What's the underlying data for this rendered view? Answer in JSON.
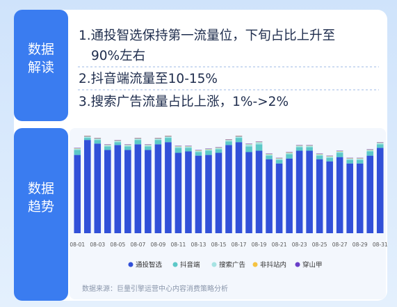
{
  "section_labels": [
    [
      "数据",
      "解读"
    ],
    [
      "数据",
      "趋势"
    ]
  ],
  "text_lines": [
    "1.通投智选保持第一流量位，下旬占比上升至",
    "90%左右",
    "2.抖音端流量至10-15%",
    "3.搜索广告流量占比上涨，1%->2%"
  ],
  "chart_data": {
    "type": "bar",
    "stacked": true,
    "categories": [
      "08-01",
      null,
      "08-03",
      null,
      "08-05",
      null,
      "08-07",
      null,
      "08-09",
      null,
      "08-11",
      null,
      "08-13",
      null,
      "08-15",
      null,
      "08-17",
      null,
      "08-19",
      null,
      "08-21",
      null,
      "08-23",
      null,
      "08-25",
      null,
      "08-27",
      null,
      "08-29",
      null,
      "08-31"
    ],
    "series": [
      {
        "name": "通投智选",
        "color": "#3150d8",
        "values": [
          110,
          131,
          126,
          117,
          124,
          117,
          125,
          117,
          125,
          128,
          113,
          115,
          109,
          110,
          113,
          124,
          128,
          114,
          116,
          104,
          98,
          105,
          116,
          116,
          104,
          101,
          107,
          98,
          98,
          109,
          120
        ]
      },
      {
        "name": "抖音端",
        "color": "#5cc8c8",
        "values": [
          7,
          3,
          5,
          5,
          4,
          5,
          6,
          5,
          6,
          6,
          7,
          5,
          5,
          6,
          5,
          5,
          6,
          8,
          9,
          5,
          5,
          6,
          5,
          5,
          5,
          5,
          6,
          5,
          5,
          6,
          5
        ]
      },
      {
        "name": "搜索广告",
        "color": "#a6e3e3",
        "values": [
          2,
          2,
          2,
          2,
          2,
          2,
          2,
          2,
          2,
          2,
          2,
          2,
          2,
          2,
          2,
          2,
          2,
          3,
          3,
          2,
          2,
          2,
          2,
          2,
          2,
          2,
          2,
          2,
          2,
          2,
          2
        ]
      },
      {
        "name": "非抖站内",
        "color": "#f5c342",
        "values": [
          0.5,
          0.5,
          0.5,
          0.5,
          0.5,
          0.5,
          0.5,
          0.5,
          0.5,
          0.5,
          0.5,
          0.5,
          0.5,
          0.5,
          0.5,
          0.5,
          0.5,
          0.5,
          0.5,
          0.5,
          0.5,
          0.5,
          0.5,
          0.5,
          0.5,
          0.5,
          0.5,
          0.5,
          0.5,
          0.5,
          0.5
        ]
      },
      {
        "name": "穿山甲",
        "color": "#6a3fc9",
        "values": [
          0.5,
          0.5,
          0.5,
          0.5,
          0.5,
          0.5,
          0.5,
          0.5,
          0.5,
          0.5,
          0.5,
          0.5,
          0.5,
          0.5,
          0.5,
          0.5,
          0.5,
          0.5,
          0.5,
          0.5,
          0.5,
          0.5,
          0.5,
          0.5,
          0.5,
          0.5,
          0.5,
          0.5,
          0.5,
          0.5,
          0.5
        ]
      }
    ],
    "legend": "bottom"
  },
  "source": "数据来源：巨量引擎运营中心内容消费策略分析"
}
